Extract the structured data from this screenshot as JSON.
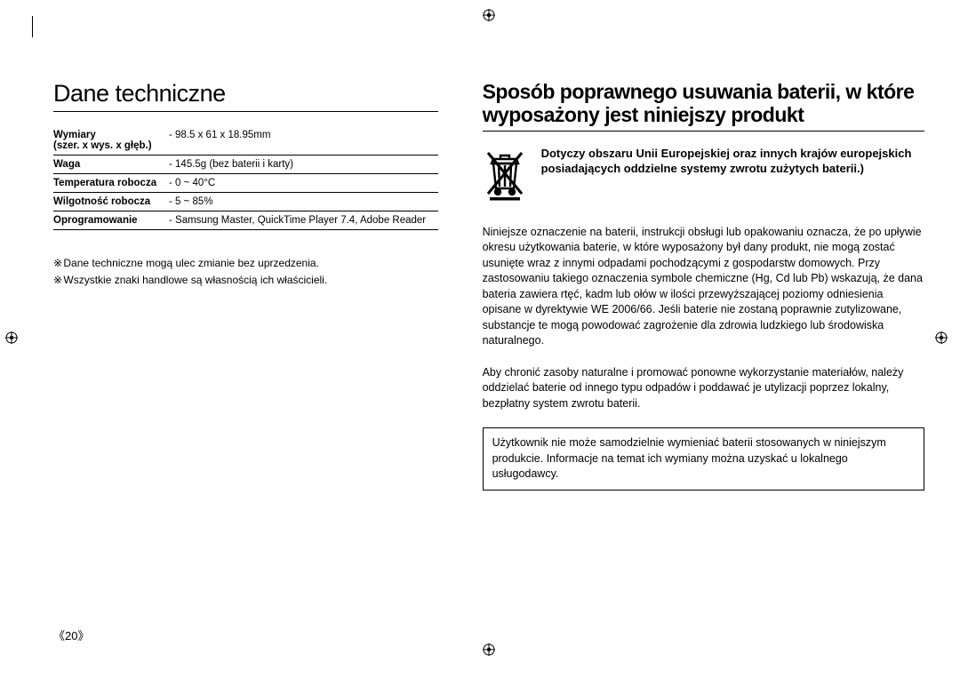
{
  "left": {
    "title": "Dane techniczne",
    "specs": [
      {
        "label": "Wymiary\n(szer. x wys. x głęb.)",
        "value": "- 98.5 x 61 x 18.95mm"
      },
      {
        "label": "Waga",
        "value": "- 145.5g (bez baterii i karty)"
      },
      {
        "label": "Temperatura robocza",
        "value": "- 0 ~ 40°C"
      },
      {
        "label": "Wilgotność robocza",
        "value": "- 5 ~ 85%"
      },
      {
        "label": "Oprogramowanie",
        "value": "- Samsung Master, QuickTime Player 7.4, Adobe Reader"
      }
    ],
    "notes": [
      "Dane techniczne mogą ulec zmianie bez uprzedzenia.",
      "Wszystkie znaki handlowe są własnością ich właścicieli."
    ]
  },
  "right": {
    "title": "Sposób poprawnego usuwania baterii, w które wyposażony jest niniejszy produkt",
    "iconCaption": "Dotyczy obszaru Unii Europejskiej oraz innych krajów europejskich posiadających oddzielne systemy zwrotu zużytych baterii.)",
    "para1": "Niniejsze oznaczenie na baterii, instrukcji obsługi lub opakowaniu oznacza, że po upływie okresu użytkowania baterie, w które wyposażony był dany produkt, nie mogą zostać usunięte wraz z innymi odpadami pochodzącymi z gospodarstw domowych. Przy zastosowaniu takiego oznaczenia symbole chemiczne (Hg, Cd lub Pb) wskazują, że dana bateria zawiera rtęć, kadm lub ołów w ilości przewyższającej poziomy odniesienia opisane w dyrektywie WE 2006/66. Jeśli baterie nie zostaną poprawnie zutylizowane, substancje te mogą powodować zagrożenie dla zdrowia ludzkiego lub środowiska naturalnego.",
    "para2": "Aby chronić zasoby naturalne i promować ponowne wykorzystanie materiałów, należy oddzielać baterie od innego typu odpadów i poddawać je utylizacji poprzez lokalny, bezpłatny system zwrotu baterii.",
    "boxed": "Użytkownik nie może samodzielnie wymieniać baterii stosowanych w niniejszym produkcie. Informacje na temat ich wymiany można uzyskać u lokalnego usługodawcy."
  },
  "pageNumber": "《20》",
  "colors": {
    "text": "#000000",
    "background": "#ffffff",
    "border": "#000000"
  }
}
